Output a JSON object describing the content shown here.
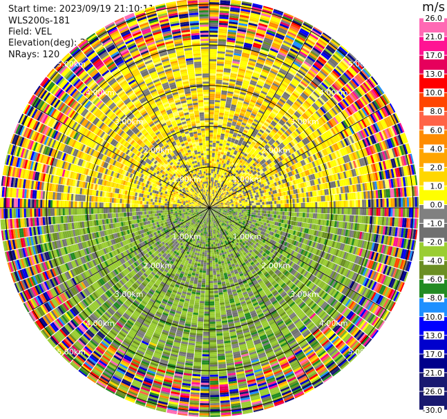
{
  "header": {
    "start_time": "Start time: 2023/09/19 21:10:11",
    "site": "WLS200s-181",
    "field": "Field: VEL",
    "elevation": "Elevation(deg): 35.30",
    "nrays": "NRays: 120"
  },
  "colorbar": {
    "title": "m/s",
    "ticks": [
      "26.0",
      "21.0",
      "17.0",
      "13.0",
      "10.0",
      "8.0",
      "6.0",
      "4.0",
      "2.0",
      "1.0",
      "0.0",
      "-1.0",
      "-2.0",
      "-4.0",
      "-6.0",
      "-8.0",
      "-10.0",
      "-13.0",
      "-17.0",
      "-21.0",
      "-26.0",
      "-30.0"
    ],
    "colors": [
      "#ff69b4",
      "#ff1493",
      "#e6005c",
      "#ff0000",
      "#ff4500",
      "#ff6347",
      "#ff8c00",
      "#ffa500",
      "#ffd700",
      "#ffff00",
      "#808080",
      "#707070",
      "#9acd32",
      "#6b8e23",
      "#228b22",
      "#1e90ff",
      "#0000ff",
      "#0000cd",
      "#00008b",
      "#1a1a70",
      "#191970"
    ]
  },
  "chart_data": {
    "type": "ppi",
    "field": "VEL",
    "units": "m/s",
    "nrays": 120,
    "range_rings_km": [
      1.0,
      2.0,
      3.0,
      4.0,
      5.0
    ],
    "range_labels": [
      "1.00km",
      "2.00km",
      "3.00km",
      "4.00km",
      "5.00km"
    ],
    "color_scale": [
      -30,
      26
    ]
  }
}
